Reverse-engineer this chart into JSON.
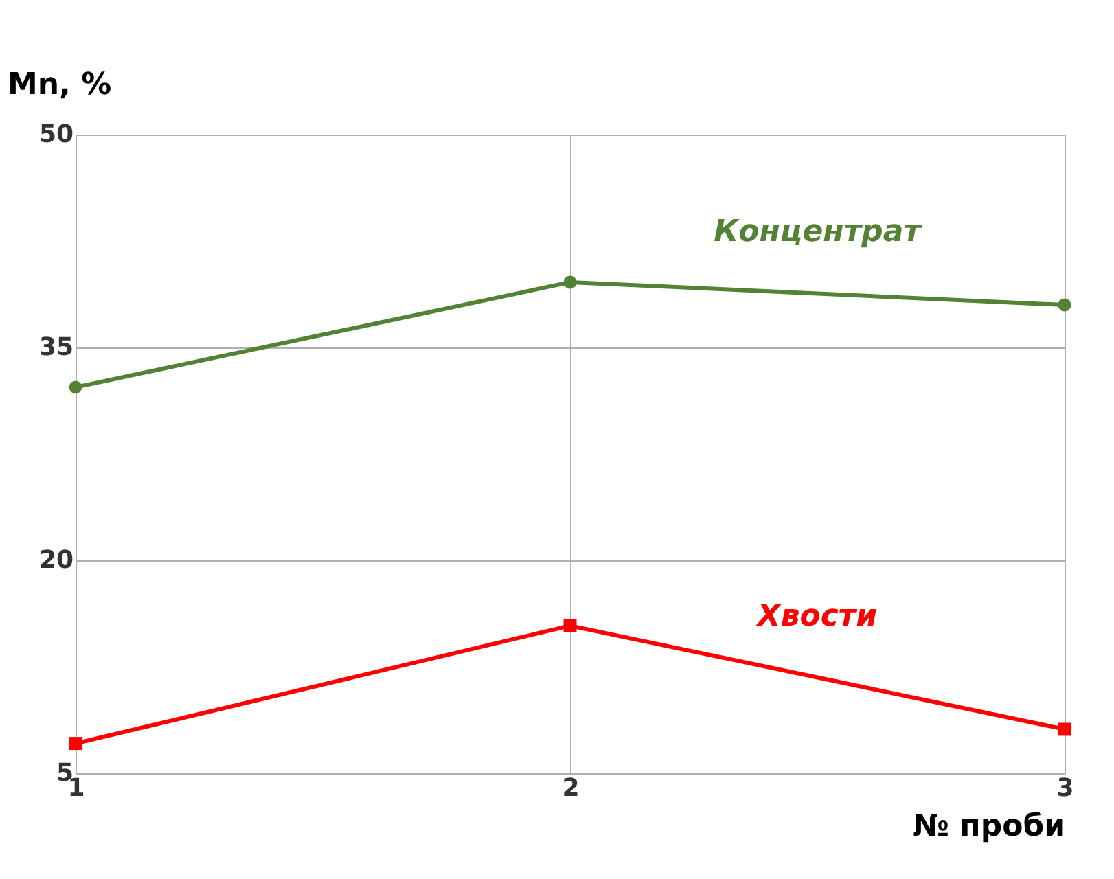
{
  "chart_data": {
    "type": "line",
    "xlabel": "№ проби",
    "ylabel": "Mn, %",
    "x": [
      1,
      2,
      3
    ],
    "xlim": [
      1,
      3
    ],
    "xticks": [
      1,
      2,
      3
    ],
    "ylim": [
      5,
      50
    ],
    "yticks": [
      5,
      20,
      35,
      50
    ],
    "grid": true,
    "series": [
      {
        "name": "Концентрат",
        "color": "#548235",
        "marker": "circle",
        "values": [
          32.2,
          39.6,
          38.0
        ]
      },
      {
        "name": "Хвости",
        "color": "#ff0000",
        "marker": "square",
        "values": [
          7.1,
          15.4,
          8.1
        ]
      }
    ]
  }
}
